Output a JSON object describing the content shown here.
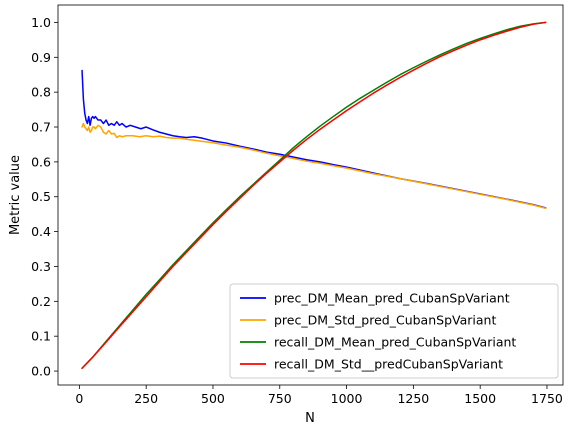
{
  "chart_data": {
    "type": "line",
    "title": "",
    "xlabel": "N",
    "ylabel": "Metric value",
    "xlim": [
      -80,
      1810
    ],
    "ylim": [
      -0.04,
      1.05
    ],
    "xticks": [
      0,
      250,
      500,
      750,
      1000,
      1250,
      1500,
      1750
    ],
    "yticks": [
      0.0,
      0.1,
      0.2,
      0.3,
      0.4,
      0.5,
      0.6,
      0.7,
      0.8,
      0.9,
      1.0
    ],
    "xtick_labels": [
      "0",
      "250",
      "500",
      "750",
      "1000",
      "1250",
      "1500",
      "1750"
    ],
    "ytick_labels": [
      "0.0",
      "0.1",
      "0.2",
      "0.3",
      "0.4",
      "0.5",
      "0.6",
      "0.7",
      "0.8",
      "0.9",
      "1.0"
    ],
    "grid": false,
    "legend_position": "lower-right",
    "series": [
      {
        "name": "prec_DM_Mean_pred_CubanSpVariant",
        "color": "#0000ff",
        "x": [
          10,
          15,
          20,
          25,
          30,
          35,
          40,
          45,
          50,
          55,
          60,
          70,
          80,
          90,
          100,
          110,
          120,
          130,
          140,
          150,
          160,
          175,
          190,
          210,
          230,
          250,
          275,
          300,
          325,
          350,
          375,
          400,
          430,
          460,
          500,
          550,
          600,
          650,
          700,
          750,
          800,
          850,
          900,
          950,
          1000,
          1100,
          1200,
          1300,
          1400,
          1500,
          1600,
          1700,
          1745
        ],
        "y": [
          0.862,
          0.78,
          0.74,
          0.72,
          0.71,
          0.73,
          0.705,
          0.725,
          0.73,
          0.725,
          0.73,
          0.72,
          0.72,
          0.71,
          0.72,
          0.705,
          0.71,
          0.705,
          0.715,
          0.705,
          0.71,
          0.7,
          0.705,
          0.7,
          0.695,
          0.7,
          0.692,
          0.685,
          0.68,
          0.675,
          0.672,
          0.67,
          0.672,
          0.668,
          0.66,
          0.654,
          0.645,
          0.637,
          0.628,
          0.622,
          0.614,
          0.606,
          0.6,
          0.592,
          0.585,
          0.568,
          0.552,
          0.538,
          0.523,
          0.508,
          0.493,
          0.477,
          0.468
        ]
      },
      {
        "name": "prec_DM_Std_pred_CubanSpVariant",
        "color": "#ffa500",
        "x": [
          10,
          15,
          20,
          25,
          30,
          35,
          40,
          45,
          50,
          55,
          60,
          70,
          80,
          90,
          100,
          110,
          120,
          130,
          140,
          150,
          160,
          175,
          200,
          225,
          250,
          275,
          300,
          325,
          350,
          375,
          400,
          450,
          500,
          550,
          600,
          650,
          700,
          750,
          800,
          850,
          900,
          950,
          1000,
          1100,
          1200,
          1300,
          1400,
          1500,
          1600,
          1700,
          1745
        ],
        "y": [
          0.7,
          0.71,
          0.7,
          0.695,
          0.69,
          0.7,
          0.685,
          0.69,
          0.7,
          0.7,
          0.695,
          0.705,
          0.7,
          0.685,
          0.68,
          0.69,
          0.68,
          0.682,
          0.67,
          0.675,
          0.672,
          0.675,
          0.675,
          0.672,
          0.675,
          0.672,
          0.674,
          0.67,
          0.668,
          0.668,
          0.665,
          0.66,
          0.655,
          0.648,
          0.642,
          0.634,
          0.625,
          0.617,
          0.61,
          0.602,
          0.596,
          0.589,
          0.582,
          0.566,
          0.552,
          0.537,
          0.522,
          0.507,
          0.492,
          0.476,
          0.467
        ]
      },
      {
        "name": "recall_DM_Mean_pred_CubanSpVariant",
        "color": "#008000",
        "x": [
          10,
          50,
          100,
          150,
          200,
          250,
          300,
          350,
          400,
          450,
          500,
          550,
          600,
          650,
          700,
          750,
          800,
          850,
          900,
          950,
          1000,
          1050,
          1100,
          1150,
          1200,
          1250,
          1300,
          1350,
          1400,
          1450,
          1500,
          1550,
          1600,
          1650,
          1700,
          1745
        ],
        "y": [
          0.008,
          0.04,
          0.085,
          0.13,
          0.175,
          0.22,
          0.262,
          0.305,
          0.345,
          0.385,
          0.425,
          0.463,
          0.5,
          0.535,
          0.57,
          0.605,
          0.64,
          0.672,
          0.702,
          0.73,
          0.757,
          0.782,
          0.805,
          0.828,
          0.85,
          0.87,
          0.889,
          0.907,
          0.924,
          0.94,
          0.954,
          0.967,
          0.979,
          0.989,
          0.996,
          1.0
        ]
      },
      {
        "name": "recall_DM_Std__predCubanSpVariant",
        "color": "#ff0000",
        "x": [
          10,
          50,
          100,
          150,
          200,
          250,
          300,
          350,
          400,
          450,
          500,
          550,
          600,
          650,
          700,
          750,
          800,
          850,
          900,
          950,
          1000,
          1050,
          1100,
          1150,
          1200,
          1250,
          1300,
          1350,
          1400,
          1450,
          1500,
          1550,
          1600,
          1650,
          1700,
          1745
        ],
        "y": [
          0.008,
          0.04,
          0.083,
          0.127,
          0.17,
          0.213,
          0.257,
          0.3,
          0.34,
          0.38,
          0.42,
          0.458,
          0.495,
          0.532,
          0.567,
          0.6,
          0.633,
          0.664,
          0.693,
          0.72,
          0.747,
          0.772,
          0.797,
          0.82,
          0.842,
          0.863,
          0.883,
          0.902,
          0.919,
          0.935,
          0.95,
          0.963,
          0.975,
          0.986,
          0.995,
          1.0
        ]
      }
    ]
  }
}
